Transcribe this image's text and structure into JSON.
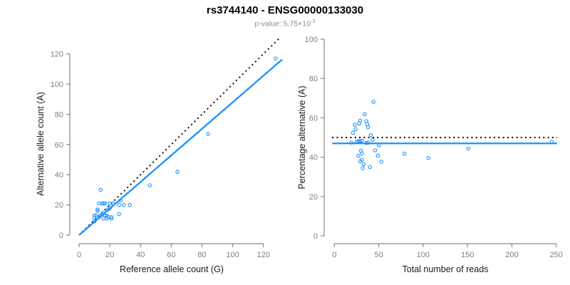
{
  "header": {
    "title": "rs3744140 - ENSG00000133030",
    "subtitle_base": "p-value: 5.75×10",
    "subtitle_exponent": "-3"
  },
  "colors": {
    "point_blue": "#1E90FF",
    "fit_line_blue": "#1E90FF",
    "dotted_line_black": "#000000",
    "axis_line_gray": "#888888",
    "tick_label_gray": "#7f7f7f",
    "title_black": "#000000",
    "subtitle_gray": "#8c8c8c",
    "axis_title_dark": "#1a1a1a",
    "background": "#ffffff"
  },
  "chart_data": [
    {
      "type": "scatter",
      "name": "allele-counts-scatter",
      "xlabel": "Reference allele count (G)",
      "ylabel": "Alternative allele count (A)",
      "xticks": [
        0,
        20,
        40,
        60,
        80,
        100,
        120
      ],
      "yticks": [
        0,
        20,
        40,
        60,
        80,
        100,
        120
      ],
      "xlim": [
        0,
        132
      ],
      "ylim": [
        0,
        130
      ],
      "grid": false,
      "legend": "none",
      "points": [
        [
          128,
          117
        ],
        [
          84,
          67
        ],
        [
          64,
          42
        ],
        [
          46,
          33
        ],
        [
          14,
          30
        ],
        [
          13,
          21
        ],
        [
          15,
          21
        ],
        [
          16,
          21
        ],
        [
          17,
          21
        ],
        [
          20,
          21
        ],
        [
          27,
          23
        ],
        [
          22,
          21
        ],
        [
          20,
          18
        ],
        [
          19,
          17
        ],
        [
          26,
          20
        ],
        [
          29,
          20
        ],
        [
          33,
          20
        ],
        [
          12,
          17
        ],
        [
          12,
          16
        ],
        [
          26,
          14
        ],
        [
          10,
          13
        ],
        [
          11,
          13
        ],
        [
          13,
          12
        ],
        [
          10,
          11
        ],
        [
          10,
          9
        ],
        [
          14,
          13
        ],
        [
          15,
          14
        ],
        [
          16,
          15
        ],
        [
          17,
          13
        ],
        [
          18,
          13
        ],
        [
          19,
          12
        ],
        [
          21,
          12
        ],
        [
          16,
          11
        ],
        [
          18,
          11
        ],
        [
          21,
          11
        ]
      ],
      "lines": [
        {
          "name": "identity-line",
          "style": "dotted",
          "color": "#000000",
          "intercept": 0,
          "slope": 1
        },
        {
          "name": "regression-line",
          "style": "solid",
          "color": "#1E90FF",
          "intercept": 0,
          "slope": 0.88
        }
      ]
    },
    {
      "type": "scatter",
      "name": "percentage-vs-coverage-scatter",
      "xlabel": "Total number of reads",
      "ylabel": "Percentage alternative (A)",
      "xticks": [
        0,
        50,
        100,
        150,
        200,
        250
      ],
      "yticks": [
        0,
        20,
        40,
        60,
        80,
        100
      ],
      "xlim": [
        0,
        251
      ],
      "ylim": [
        0,
        100
      ],
      "grid": false,
      "legend": "none",
      "points": [
        [
          245,
          47.8
        ],
        [
          151,
          44.4
        ],
        [
          106,
          39.6
        ],
        [
          79,
          41.8
        ],
        [
          44,
          68.2
        ],
        [
          34,
          61.8
        ],
        [
          36,
          58.3
        ],
        [
          37,
          56.8
        ],
        [
          38,
          55.3
        ],
        [
          41,
          51.2
        ],
        [
          50,
          46.0
        ],
        [
          43,
          48.8
        ],
        [
          38,
          47.4
        ],
        [
          36,
          47.2
        ],
        [
          46,
          43.5
        ],
        [
          49,
          40.8
        ],
        [
          53,
          37.7
        ],
        [
          29,
          58.6
        ],
        [
          28,
          57.1
        ],
        [
          40,
          35.0
        ],
        [
          23,
          56.5
        ],
        [
          24,
          54.2
        ],
        [
          25,
          48.0
        ],
        [
          21,
          52.4
        ],
        [
          19,
          47.4
        ],
        [
          27,
          48.1
        ],
        [
          29,
          48.3
        ],
        [
          31,
          48.4
        ],
        [
          30,
          43.3
        ],
        [
          31,
          41.9
        ],
        [
          31,
          38.7
        ],
        [
          33,
          36.4
        ],
        [
          27,
          40.7
        ],
        [
          29,
          37.9
        ],
        [
          32,
          34.4
        ]
      ],
      "lines": [
        {
          "name": "expected-50-line",
          "style": "dotted",
          "color": "#000000",
          "y": 50
        },
        {
          "name": "mean-percentage-line",
          "style": "solid",
          "color": "#1E90FF",
          "y": 47
        }
      ]
    }
  ]
}
